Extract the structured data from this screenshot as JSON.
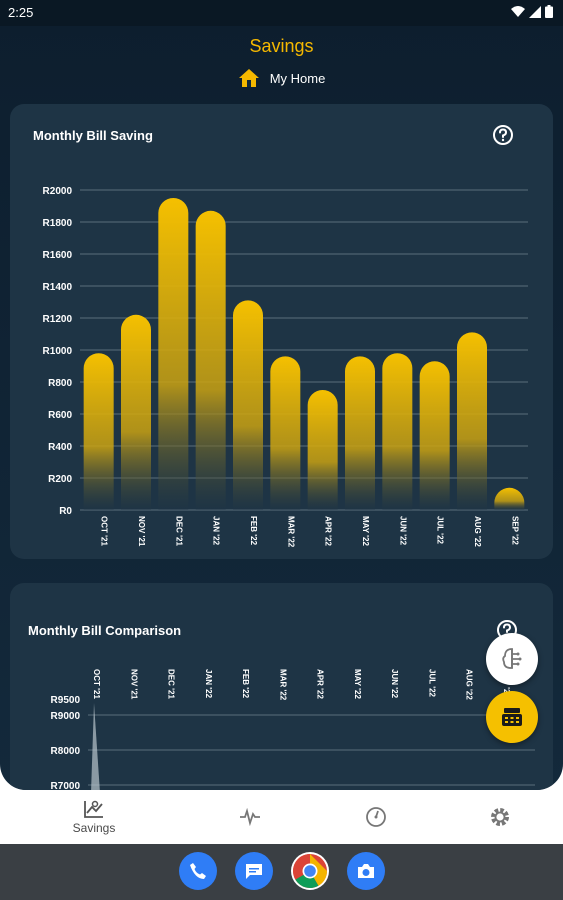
{
  "status_bar": {
    "time": "2:25"
  },
  "header": {
    "title": "Savings",
    "home_label": "My Home"
  },
  "cards": {
    "saving": {
      "title": "Monthly Bill Saving"
    },
    "comparison": {
      "title": "Monthly Bill Comparison"
    }
  },
  "colors": {
    "accent": "#f5b800",
    "background": "#13293b",
    "card": "#1e3445",
    "grid": "#5b6e7c"
  },
  "chart_data": [
    {
      "type": "bar",
      "title": "Monthly Bill Saving",
      "categories": [
        "OCT '21",
        "NOV '21",
        "DEC '21",
        "JAN '22",
        "FEB '22",
        "MAR '22",
        "APR '22",
        "MAY '22",
        "JUN '22",
        "JUL '22",
        "AUG '22",
        "SEP '22"
      ],
      "values": [
        980,
        1220,
        1950,
        1870,
        1310,
        960,
        750,
        960,
        980,
        930,
        1110,
        90
      ],
      "ylim": [
        0,
        2000
      ],
      "y_ticks": [
        "R0",
        "R200",
        "R400",
        "R600",
        "R800",
        "R1000",
        "R1200",
        "R1400",
        "R1600",
        "R1800",
        "R2000"
      ],
      "y_tick_values": [
        0,
        200,
        400,
        600,
        800,
        1000,
        1200,
        1400,
        1600,
        1800,
        2000
      ],
      "grid": true
    },
    {
      "type": "line",
      "title": "Monthly Bill Comparison",
      "categories": [
        "OCT '21",
        "NOV '21",
        "DEC '21",
        "JAN '22",
        "FEB '22",
        "MAR '22",
        "APR '22",
        "MAY '22",
        "JUN '22",
        "JUL '22",
        "AUG '22",
        "SEP '22"
      ],
      "y_ticks": [
        "R9500",
        "R9000",
        "R8000",
        "R7000"
      ],
      "y_tick_values": [
        9500,
        9000,
        8000,
        7000
      ],
      "ylim_visible": [
        7000,
        9500
      ],
      "grid": true
    }
  ],
  "fabs": {
    "top_icon": "brain-icon",
    "bottom_icon": "bill-icon"
  },
  "bottom_nav": {
    "items": [
      {
        "label": "Savings",
        "icon": "savings-chart-icon"
      },
      {
        "label": "",
        "icon": "pulse-icon"
      },
      {
        "label": "",
        "icon": "gauge-icon"
      },
      {
        "label": "",
        "icon": "gear-icon"
      }
    ]
  },
  "dock": [
    "phone-icon",
    "messages-icon",
    "chrome-icon",
    "camera-icon"
  ]
}
